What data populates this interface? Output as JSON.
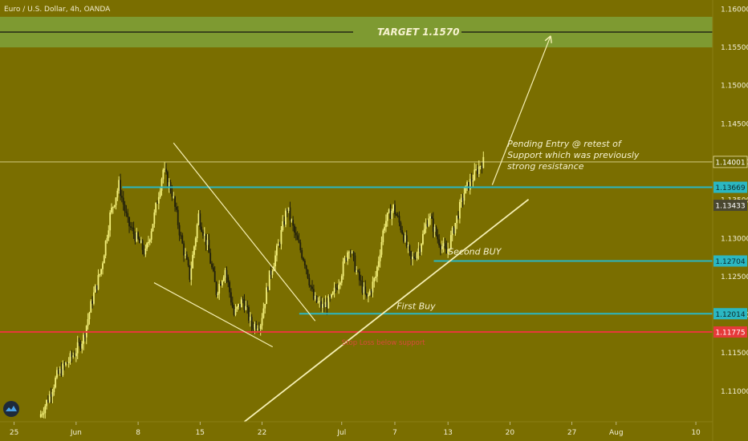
{
  "header": {
    "symbol_title": "Euro / U.S. Dollar, 4h, OANDA"
  },
  "chart_data": {
    "type": "candlestick",
    "instrument": "Euro / U.S. Dollar",
    "timeframe": "4h",
    "source": "OANDA",
    "ylim": [
      1.106,
      1.1612
    ],
    "y_ticks": [
      "1.16000",
      "1.15500",
      "1.15000",
      "1.14500",
      "1.14000",
      "1.13500",
      "1.13000",
      "1.12500",
      "1.12000",
      "1.11500",
      "1.11000"
    ],
    "x_tick_labels": [
      {
        "label": "25",
        "day": -6
      },
      {
        "label": "Jun",
        "day": 1
      },
      {
        "label": "8",
        "day": 8
      },
      {
        "label": "15",
        "day": 15
      },
      {
        "label": "22",
        "day": 22
      },
      {
        "label": "Jul",
        "day": 31
      },
      {
        "label": "7",
        "day": 37
      },
      {
        "label": "13",
        "day": 43
      },
      {
        "label": "20",
        "day": 50
      },
      {
        "label": "27",
        "day": 57
      },
      {
        "label": "Aug",
        "day": 62
      },
      {
        "label": "10",
        "day": 71
      }
    ],
    "x_range_days": [
      -7.6,
      72.9
    ],
    "price_path": [
      [
        -3,
        1.1066
      ],
      [
        -2,
        1.109
      ],
      [
        -1,
        1.112
      ],
      [
        0,
        1.1135
      ],
      [
        1,
        1.115
      ],
      [
        2,
        1.117
      ],
      [
        3,
        1.122
      ],
      [
        4,
        1.126
      ],
      [
        5,
        1.133
      ],
      [
        6,
        1.137
      ],
      [
        7,
        1.132
      ],
      [
        8,
        1.13
      ],
      [
        9,
        1.128
      ],
      [
        10,
        1.133
      ],
      [
        11,
        1.139
      ],
      [
        12,
        1.136
      ],
      [
        13,
        1.13
      ],
      [
        14,
        1.125
      ],
      [
        15,
        1.133
      ],
      [
        16,
        1.129
      ],
      [
        17,
        1.123
      ],
      [
        18,
        1.126
      ],
      [
        19,
        1.12
      ],
      [
        20,
        1.122
      ],
      [
        21,
        1.1185
      ],
      [
        22,
        1.119
      ],
      [
        23,
        1.125
      ],
      [
        24,
        1.129
      ],
      [
        25,
        1.134
      ],
      [
        26,
        1.13
      ],
      [
        27,
        1.127
      ],
      [
        28,
        1.122
      ],
      [
        29,
        1.121
      ],
      [
        30,
        1.122
      ],
      [
        31,
        1.125
      ],
      [
        32,
        1.129
      ],
      [
        33,
        1.125
      ],
      [
        34,
        1.122
      ],
      [
        35,
        1.125
      ],
      [
        36,
        1.132
      ],
      [
        37,
        1.134
      ],
      [
        38,
        1.131
      ],
      [
        39,
        1.127
      ],
      [
        40,
        1.129
      ],
      [
        41,
        1.133
      ],
      [
        42,
        1.13
      ],
      [
        43,
        1.128
      ],
      [
        44,
        1.132
      ],
      [
        45,
        1.136
      ],
      [
        46,
        1.138
      ],
      [
        47,
        1.14
      ]
    ],
    "annotations": {
      "target": {
        "label": "TARGET 1.1570",
        "price": 1.157,
        "zone": [
          1.155,
          1.159
        ]
      },
      "pending_entry": [
        "Pending Entry @ retest of",
        "Support which was previously",
        "strong resistance"
      ],
      "second_buy": {
        "label": "Second BUY",
        "price": 1.12704
      },
      "first_buy": {
        "label": "First Buy",
        "price": 1.12014
      },
      "stop_loss": {
        "label": "Stop Loss below support",
        "price": 1.11775
      },
      "resistance_level": 1.13669,
      "current_price_line": 1.14001
    },
    "price_badges": [
      {
        "label": "1.14001",
        "price": 1.14001,
        "bg": "#6e6600",
        "fg": "#ffffff",
        "outline": true
      },
      {
        "label": "1.13669",
        "price": 1.13669,
        "bg": "#2bb7c2",
        "fg": "#0d2a2c",
        "outline": false
      },
      {
        "label": "1.13433",
        "price": 1.13433,
        "bg": "#4a4730",
        "fg": "#ffffff",
        "outline": false
      },
      {
        "label": "1.12704",
        "price": 1.12704,
        "bg": "#2bb7c2",
        "fg": "#0d2a2c",
        "outline": false
      },
      {
        "label": "1.12014",
        "price": 1.12014,
        "bg": "#2bb7c2",
        "fg": "#0d2a2c",
        "outline": false
      },
      {
        "label": "1.11775",
        "price": 1.11775,
        "bg": "#e6393a",
        "fg": "#ffffff",
        "outline": false
      }
    ],
    "colors": {
      "background": "#7a6e00",
      "candle_up": "#f4f07a",
      "candle_down": "#1f1e0c",
      "drawing": "#f6f0b4",
      "support_lines": "#2bb7c2",
      "stop_loss": "#e6393a",
      "target_zone": "#7fa23a",
      "stop_loss_text": "#d84a3a"
    },
    "grid": false
  }
}
